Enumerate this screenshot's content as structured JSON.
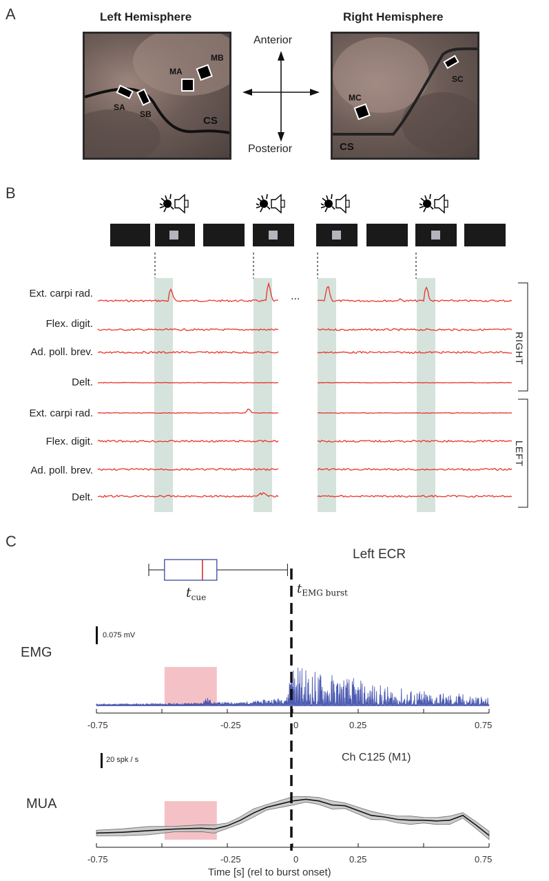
{
  "panel_a": {
    "letter": "A",
    "left": {
      "title": "Left Hemisphere",
      "sites": [
        "SA",
        "SB",
        "MA",
        "MB"
      ],
      "sulcus": "CS"
    },
    "right": {
      "title": "Right Hemisphere",
      "sites": [
        "SC",
        "MC"
      ],
      "sulcus": "CS"
    },
    "compass": {
      "up": "Anterior",
      "down": "Posterior"
    }
  },
  "panel_b": {
    "letter": "B",
    "ellipsis": "...",
    "muscles": [
      "Ext. carpi rad.",
      "Flex. digit.",
      "Ad. poll. brev.",
      "Delt.",
      "Ext. carpi  rad.",
      "Flex. digit.",
      "Ad. poll. brev.",
      "Delt."
    ],
    "sides": [
      "RIGHT",
      "LEFT"
    ]
  },
  "panel_c": {
    "letter": "C",
    "title": "Left ECR",
    "cue_label": "t",
    "cue_sub": "cue",
    "burst_label": "t",
    "burst_sub": "EMG burst",
    "emg_label": "EMG",
    "emg_scale": "0.075 mV",
    "mua_label": "MUA",
    "mua_scale": "20 spk / s",
    "channel": "Ch C125 (M1)",
    "xlabel": "Time [s] (rel to burst onset)",
    "ticks": [
      "-0.75",
      "-0.25",
      "0",
      "0.25",
      "0.75"
    ]
  },
  "colors": {
    "trace": "#e8332a",
    "emg": "#3a4aa8",
    "shade_b": "#d5e3dc",
    "shade_c": "#f4c2c6",
    "median": "#d62020"
  },
  "chart_data": [
    {
      "type": "boxplot",
      "label": "t_cue",
      "x": [
        -0.55,
        -0.49,
        -0.345,
        -0.29,
        -0.02
      ]
    },
    {
      "type": "line",
      "title": "Left ECR",
      "ylabel": "EMG",
      "xlabel": "",
      "xlim": [
        -0.75,
        0.75
      ],
      "shaded_x": [
        -0.49,
        -0.29
      ],
      "x": [
        -0.75,
        -0.6,
        -0.45,
        -0.35,
        -0.33,
        -0.3,
        -0.2,
        -0.1,
        -0.02,
        0.0,
        0.05,
        0.1,
        0.15,
        0.2,
        0.3,
        0.4,
        0.5,
        0.6,
        0.7,
        0.75
      ],
      "y": [
        0.005,
        0.006,
        0.007,
        0.01,
        0.03,
        0.012,
        0.012,
        0.02,
        0.03,
        0.2,
        0.15,
        0.14,
        0.13,
        0.12,
        0.09,
        0.07,
        0.06,
        0.05,
        0.045,
        0.03
      ]
    },
    {
      "type": "line",
      "title": "Ch C125 (M1)",
      "ylabel": "MUA",
      "xlabel": "Time [s] (rel to burst onset)",
      "xlim": [
        -0.75,
        0.75
      ],
      "shaded_x": [
        -0.49,
        -0.29
      ],
      "x": [
        -0.75,
        -0.65,
        -0.55,
        -0.45,
        -0.35,
        -0.3,
        -0.25,
        -0.2,
        -0.15,
        -0.1,
        -0.05,
        0.0,
        0.05,
        0.1,
        0.15,
        0.2,
        0.25,
        0.3,
        0.35,
        0.4,
        0.45,
        0.5,
        0.55,
        0.6,
        0.65,
        0.7,
        0.75
      ],
      "y": [
        30,
        31,
        33,
        35,
        36,
        35,
        39,
        46,
        55,
        62,
        66,
        70,
        72,
        70,
        65,
        64,
        58,
        52,
        50,
        47,
        46,
        46,
        45,
        46,
        52,
        40,
        27
      ]
    }
  ]
}
